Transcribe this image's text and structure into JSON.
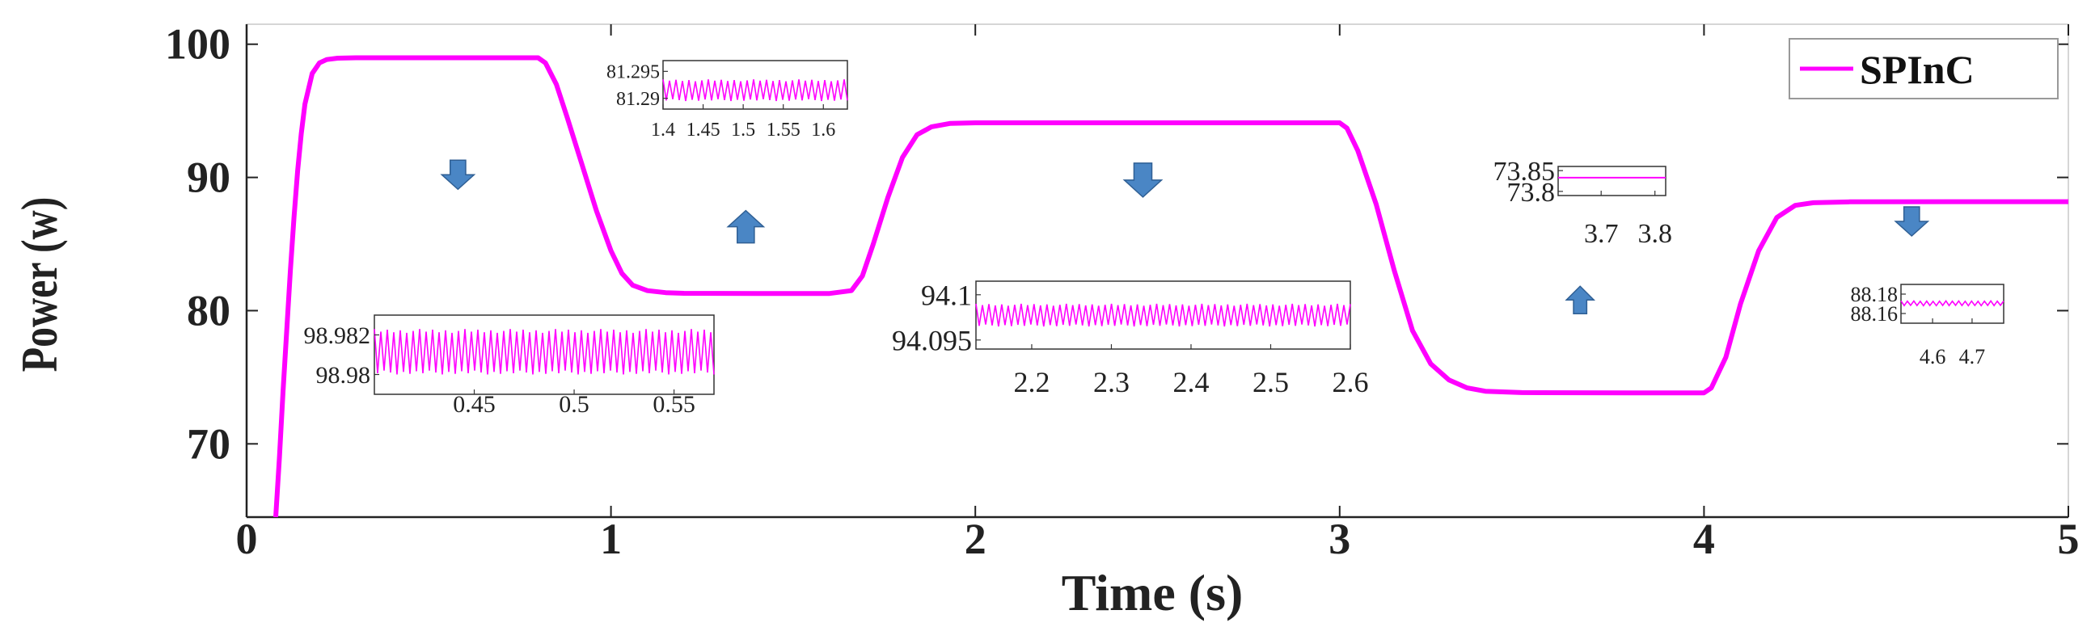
{
  "chart_data": {
    "type": "line",
    "xlabel": "Time (s)",
    "ylabel": "Power (w)",
    "xlim": [
      0,
      5
    ],
    "ylim": [
      64.5,
      101.5
    ],
    "xticks": [
      "0",
      "1",
      "2",
      "3",
      "4",
      "5"
    ],
    "yticks": [
      "70",
      "80",
      "90",
      "100"
    ],
    "grid": false,
    "legend_position": "top-right",
    "line_color": "#ff00ff",
    "arrow_color": "#4a86c5",
    "series": [
      {
        "name": "SPInC",
        "x": [
          0.08,
          0.09,
          0.1,
          0.11,
          0.12,
          0.13,
          0.14,
          0.15,
          0.16,
          0.18,
          0.2,
          0.22,
          0.25,
          0.3,
          0.4,
          0.6,
          0.8,
          0.82,
          0.85,
          0.88,
          0.92,
          0.96,
          1.0,
          1.03,
          1.06,
          1.1,
          1.15,
          1.2,
          1.4,
          1.6,
          1.66,
          1.69,
          1.72,
          1.76,
          1.8,
          1.84,
          1.88,
          1.93,
          2.0,
          2.2,
          2.6,
          2.8,
          3.0,
          3.02,
          3.05,
          3.1,
          3.15,
          3.2,
          3.25,
          3.3,
          3.35,
          3.4,
          3.5,
          3.8,
          4.0,
          4.02,
          4.06,
          4.1,
          4.15,
          4.2,
          4.25,
          4.3,
          4.4,
          4.7,
          5.0
        ],
        "y": [
          64.5,
          69,
          74,
          78.5,
          83,
          87,
          90.5,
          93.3,
          95.5,
          97.8,
          98.6,
          98.85,
          98.95,
          98.98,
          98.98,
          98.98,
          98.98,
          98.6,
          97.0,
          94.5,
          91.0,
          87.5,
          84.5,
          82.8,
          81.9,
          81.5,
          81.35,
          81.3,
          81.29,
          81.29,
          81.5,
          82.6,
          85.0,
          88.5,
          91.5,
          93.2,
          93.8,
          94.05,
          94.1,
          94.1,
          94.1,
          94.1,
          94.1,
          93.7,
          92.0,
          88.0,
          83.0,
          78.5,
          76.0,
          74.8,
          74.2,
          73.95,
          73.85,
          73.83,
          73.83,
          74.2,
          76.5,
          80.5,
          84.5,
          87.0,
          87.9,
          88.1,
          88.17,
          88.18,
          88.18
        ]
      }
    ],
    "insets": [
      {
        "xlim": [
          0.4,
          0.57
        ],
        "ylim": [
          98.979,
          98.983
        ],
        "xticks": [
          "0.45",
          "0.5",
          "0.55"
        ],
        "yticks": [
          "98.982",
          "98.98"
        ],
        "band": [
          98.98,
          98.9823
        ]
      },
      {
        "xlim": [
          1.4,
          1.63
        ],
        "ylim": [
          81.288,
          81.297
        ],
        "xticks": [
          "1.4",
          "1.45",
          "1.5",
          "1.55",
          "1.6"
        ],
        "yticks": [
          "81.295",
          "81.29"
        ],
        "band": [
          81.2895,
          81.2935
        ]
      },
      {
        "xlim": [
          2.13,
          2.6
        ],
        "ylim": [
          94.094,
          94.1015
        ],
        "xticks": [
          "2.2",
          "2.3",
          "2.4",
          "2.5",
          "2.6"
        ],
        "yticks": [
          "94.1",
          "94.095"
        ],
        "band": [
          94.0965,
          94.099
        ]
      },
      {
        "xlim": [
          3.62,
          3.82
        ],
        "ylim": [
          73.79,
          73.86
        ],
        "xticks": [
          "3.7",
          "3.8"
        ],
        "yticks": [
          "73.85",
          "73.8"
        ],
        "band": [
          73.833,
          73.833
        ]
      },
      {
        "xlim": [
          4.52,
          4.78
        ],
        "ylim": [
          88.15,
          88.19
        ],
        "xticks": [
          "4.6",
          "4.7"
        ],
        "yticks": [
          "88.18",
          "88.16"
        ],
        "band": [
          88.168,
          88.173
        ]
      }
    ],
    "arrows": [
      {
        "direction": "down",
        "x": 0.58,
        "y": 90.2
      },
      {
        "direction": "up",
        "x": 1.37,
        "y": 86.3
      },
      {
        "direction": "down",
        "x": 2.46,
        "y": 89.8
      },
      {
        "direction": "up",
        "x": 3.66,
        "y": 80.8
      },
      {
        "direction": "down",
        "x": 4.57,
        "y": 86.7
      }
    ]
  }
}
